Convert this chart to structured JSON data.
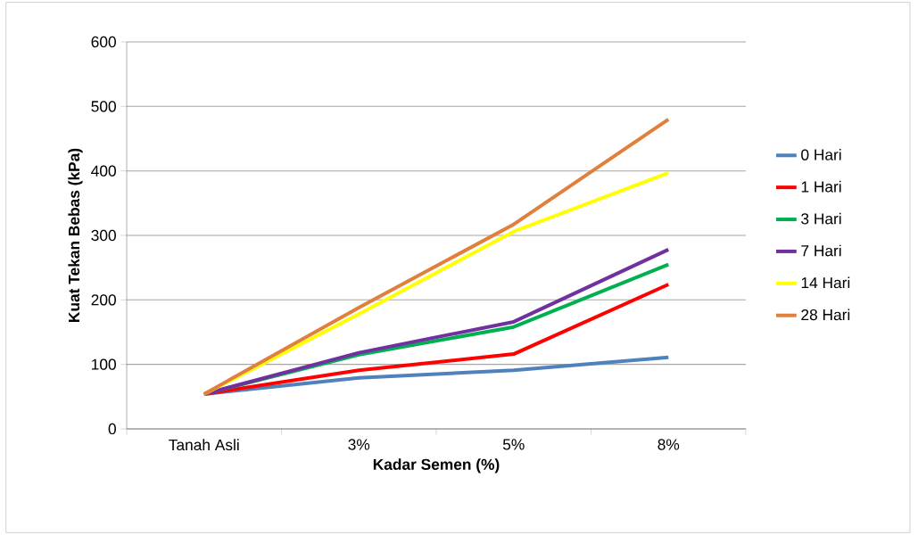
{
  "chart_data": {
    "type": "line",
    "xlabel": "Kadar Semen (%)",
    "ylabel": "Kuat Tekan Bebas (kPa)",
    "categories": [
      "Tanah Asli",
      "3%",
      "5%",
      "8%"
    ],
    "ylim": [
      0,
      600
    ],
    "yticks": [
      0,
      100,
      200,
      300,
      400,
      500,
      600
    ],
    "grid": "y",
    "legend": "right",
    "marker": "none",
    "line_style": "solid",
    "series": [
      {
        "name": "0 Hari",
        "color": "#4f81bd",
        "values": [
          54,
          79,
          91,
          111
        ]
      },
      {
        "name": "1 Hari",
        "color": "#ff0000",
        "values": [
          54,
          91,
          116,
          224
        ]
      },
      {
        "name": "3 Hari",
        "color": "#00b050",
        "values": [
          54,
          115,
          158,
          255
        ]
      },
      {
        "name": "7 Hari",
        "color": "#7030a0",
        "values": [
          54,
          118,
          166,
          278
        ]
      },
      {
        "name": "14 Hari",
        "color": "#ffff00",
        "values": [
          54,
          178,
          306,
          397
        ]
      },
      {
        "name": "28 Hari",
        "color": "#e0803c",
        "values": [
          54,
          188,
          317,
          480
        ]
      }
    ]
  }
}
